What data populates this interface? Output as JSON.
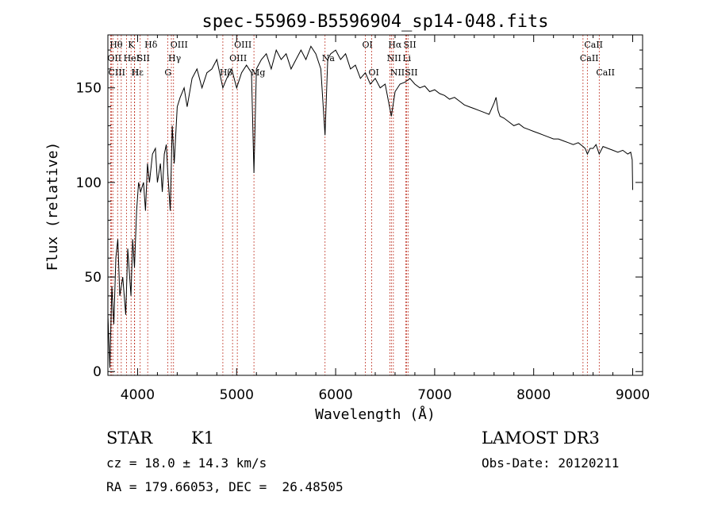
{
  "chart_data": {
    "type": "line",
    "title": "spec-55969-B5596904_sp14-048.fits",
    "xlabel": "Wavelength (Å)",
    "ylabel": "Flux (relative)",
    "xlim": [
      3700,
      9100
    ],
    "ylim": [
      -2,
      178
    ],
    "xticks": [
      4000,
      5000,
      6000,
      7000,
      8000,
      9000
    ],
    "yticks": [
      0,
      50,
      100,
      150
    ],
    "series": [
      {
        "name": "flux",
        "x": [
          3700,
          3720,
          3740,
          3760,
          3780,
          3800,
          3820,
          3850,
          3880,
          3900,
          3933,
          3950,
          3968,
          3990,
          4010,
          4030,
          4060,
          4080,
          4100,
          4120,
          4150,
          4180,
          4200,
          4230,
          4250,
          4270,
          4290,
          4305,
          4330,
          4350,
          4370,
          4400,
          4430,
          4470,
          4500,
          4550,
          4600,
          4650,
          4700,
          4750,
          4800,
          4861,
          4900,
          4950,
          5000,
          5050,
          5100,
          5150,
          5175,
          5200,
          5250,
          5300,
          5350,
          5400,
          5450,
          5500,
          5550,
          5600,
          5650,
          5700,
          5750,
          5800,
          5850,
          5893,
          5920,
          5950,
          6000,
          6050,
          6100,
          6150,
          6200,
          6250,
          6300,
          6350,
          6400,
          6450,
          6500,
          6563,
          6600,
          6650,
          6700,
          6750,
          6800,
          6850,
          6900,
          6950,
          7000,
          7050,
          7100,
          7150,
          7200,
          7250,
          7300,
          7350,
          7400,
          7450,
          7500,
          7550,
          7600,
          7620,
          7640,
          7660,
          7700,
          7750,
          7800,
          7850,
          7900,
          7950,
          8000,
          8050,
          8100,
          8150,
          8200,
          8250,
          8300,
          8350,
          8400,
          8450,
          8498,
          8520,
          8542,
          8570,
          8600,
          8630,
          8662,
          8700,
          8750,
          8800,
          8850,
          8900,
          8950,
          8980,
          8995,
          9000
        ],
        "y": [
          30,
          2,
          45,
          25,
          60,
          70,
          40,
          50,
          30,
          65,
          40,
          70,
          55,
          85,
          100,
          95,
          100,
          85,
          110,
          100,
          115,
          118,
          100,
          110,
          95,
          115,
          120,
          105,
          85,
          130,
          110,
          140,
          145,
          150,
          140,
          155,
          160,
          150,
          158,
          160,
          165,
          150,
          155,
          160,
          150,
          158,
          162,
          158,
          105,
          160,
          165,
          168,
          160,
          170,
          165,
          168,
          160,
          165,
          170,
          165,
          172,
          168,
          160,
          125,
          165,
          168,
          170,
          165,
          168,
          160,
          162,
          155,
          158,
          152,
          155,
          150,
          152,
          135,
          148,
          152,
          153,
          155,
          152,
          150,
          151,
          148,
          149,
          147,
          146,
          144,
          145,
          143,
          141,
          140,
          139,
          138,
          137,
          136,
          142,
          145,
          138,
          135,
          134,
          132,
          130,
          131,
          129,
          128,
          127,
          126,
          125,
          124,
          123,
          123,
          122,
          121,
          120,
          121,
          119,
          118,
          115,
          118,
          118,
          120,
          115,
          119,
          118,
          117,
          116,
          117,
          115,
          116,
          112,
          96
        ],
        "color": "#000000"
      }
    ],
    "lines": [
      {
        "wl": 3750,
        "label": "Hθ",
        "row": 0
      },
      {
        "wl": 3727,
        "label": "OII",
        "row": 1
      },
      {
        "wl": 3736,
        "label": "CIII",
        "row": 2
      },
      {
        "wl": 3798,
        "label": "",
        "row": 0
      },
      {
        "wl": 3835,
        "label": "",
        "row": 0
      },
      {
        "wl": 3889,
        "label": "HeI",
        "row": 1
      },
      {
        "wl": 3934,
        "label": "K",
        "row": 0
      },
      {
        "wl": 3970,
        "label": "Hε",
        "row": 2
      },
      {
        "wl": 3968,
        "label": "H",
        "row": 2
      },
      {
        "wl": 4026,
        "label": "SII",
        "row": 1
      },
      {
        "wl": 4102,
        "label": "Hδ",
        "row": 0
      },
      {
        "wl": 4304,
        "label": "G",
        "row": 2
      },
      {
        "wl": 4341,
        "label": "Hγ",
        "row": 1
      },
      {
        "wl": 4363,
        "label": "OIII",
        "row": 0
      },
      {
        "wl": 4861,
        "label": "Hβ",
        "row": 2
      },
      {
        "wl": 4959,
        "label": "OIII",
        "row": 1
      },
      {
        "wl": 5007,
        "label": "OIII",
        "row": 0
      },
      {
        "wl": 5175,
        "label": "Mg",
        "row": 2
      },
      {
        "wl": 5893,
        "label": "Na",
        "row": 1
      },
      {
        "wl": 6300,
        "label": "OI",
        "row": 0
      },
      {
        "wl": 6364,
        "label": "OI",
        "row": 2
      },
      {
        "wl": 6548,
        "label": "NII",
        "row": 1
      },
      {
        "wl": 6563,
        "label": "Hα",
        "row": 0
      },
      {
        "wl": 6583,
        "label": "NII",
        "row": 2
      },
      {
        "wl": 6707,
        "label": "Li",
        "row": 1
      },
      {
        "wl": 6716,
        "label": "SII",
        "row": 0
      },
      {
        "wl": 6731,
        "label": "SII",
        "row": 2
      },
      {
        "wl": 8498,
        "label": "CaII",
        "row": 1
      },
      {
        "wl": 8542,
        "label": "CaII",
        "row": 0
      },
      {
        "wl": 8662,
        "label": "CaII",
        "row": 2
      }
    ]
  },
  "info": {
    "class_label": "STAR",
    "subclass": "K1",
    "survey": "LAMOST DR3",
    "cz": "cz = 18.0 ± 14.3 km/s",
    "obs_date": "Obs-Date: 20120211",
    "coords": "RA = 179.66053, DEC =  26.48505"
  }
}
